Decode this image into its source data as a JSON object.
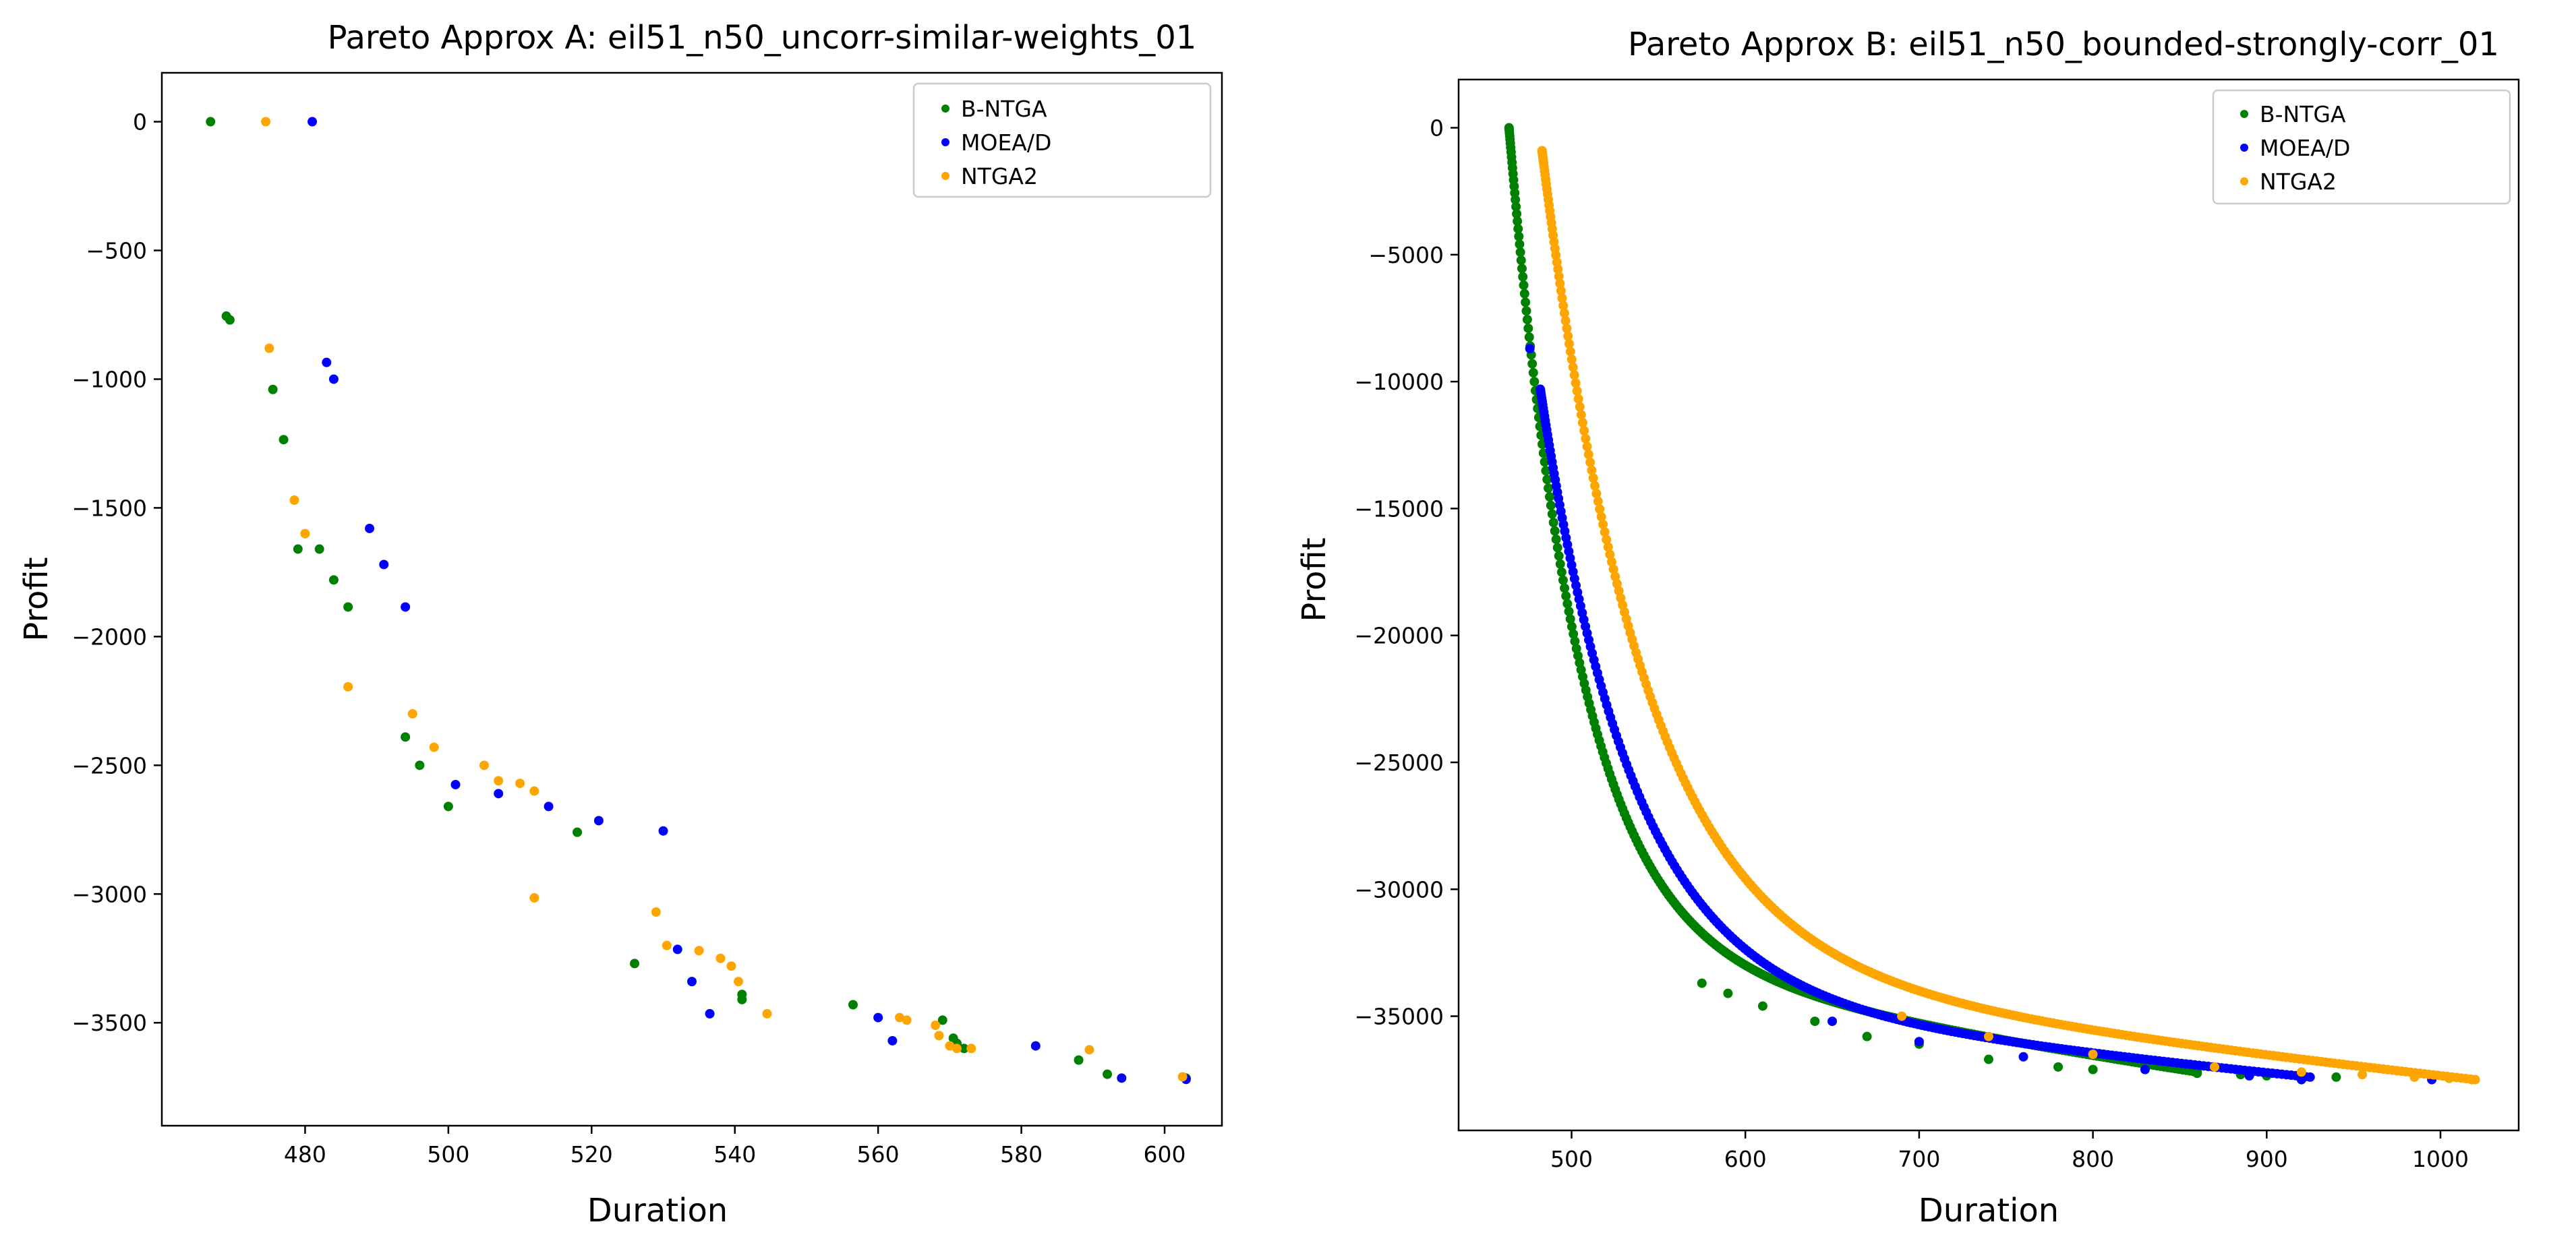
{
  "chart_data": [
    {
      "type": "scatter",
      "title": "Pareto Approx A: eil51_n50_uncorr-similar-weights_01",
      "xlabel": "Duration",
      "ylabel": "Profit",
      "xlim": [
        460,
        608
      ],
      "ylim": [
        -3900,
        190
      ],
      "xticks": [
        480,
        500,
        520,
        540,
        560,
        580,
        600
      ],
      "yticks": [
        0,
        -500,
        -1000,
        -1500,
        -2000,
        -2500,
        -3000,
        -3500
      ],
      "xtick_labels": [
        "480",
        "500",
        "520",
        "540",
        "560",
        "580",
        "600"
      ],
      "ytick_labels": [
        "0",
        "−500",
        "−1000",
        "−1500",
        "−2000",
        "−2500",
        "−3000",
        "−3500"
      ],
      "legend": [
        "B-NTGA",
        "MOEA/D",
        "NTGA2"
      ],
      "legend_position": "upper right",
      "series": [
        {
          "name": "B-NTGA",
          "color": "#008000",
          "points": [
            [
              466.8,
              0
            ],
            [
              469,
              -755
            ],
            [
              469.5,
              -770
            ],
            [
              475.5,
              -1040
            ],
            [
              477,
              -1235
            ],
            [
              479,
              -1660
            ],
            [
              482,
              -1660
            ],
            [
              484,
              -1780
            ],
            [
              486,
              -1885
            ],
            [
              494,
              -2390
            ],
            [
              496,
              -2500
            ],
            [
              500,
              -2660
            ],
            [
              518,
              -2760
            ],
            [
              526,
              -3270
            ],
            [
              541,
              -3390
            ],
            [
              541,
              -3410
            ],
            [
              556.5,
              -3430
            ],
            [
              569,
              -3490
            ],
            [
              570.5,
              -3560
            ],
            [
              571,
              -3580
            ],
            [
              572,
              -3600
            ],
            [
              588,
              -3645
            ],
            [
              592,
              -3700
            ],
            [
              603,
              -3715
            ]
          ]
        },
        {
          "name": "MOEA/D",
          "color": "#0000ff",
          "points": [
            [
              481,
              0
            ],
            [
              483,
              -935
            ],
            [
              484,
              -1000
            ],
            [
              489,
              -1580
            ],
            [
              491,
              -1720
            ],
            [
              494,
              -1885
            ],
            [
              501,
              -2575
            ],
            [
              507,
              -2610
            ],
            [
              514,
              -2660
            ],
            [
              521,
              -2715
            ],
            [
              530,
              -2755
            ],
            [
              532,
              -3215
            ],
            [
              534,
              -3340
            ],
            [
              536.5,
              -3465
            ],
            [
              560,
              -3480
            ],
            [
              562,
              -3570
            ],
            [
              582,
              -3590
            ],
            [
              594,
              -3715
            ],
            [
              603,
              -3720
            ]
          ]
        },
        {
          "name": "NTGA2",
          "color": "#ffa500",
          "points": [
            [
              474.5,
              0
            ],
            [
              475,
              -880
            ],
            [
              478.5,
              -1470
            ],
            [
              480,
              -1600
            ],
            [
              486,
              -2195
            ],
            [
              495,
              -2300
            ],
            [
              498,
              -2430
            ],
            [
              505,
              -2500
            ],
            [
              507,
              -2560
            ],
            [
              510,
              -2570
            ],
            [
              512,
              -2600
            ],
            [
              512,
              -3015
            ],
            [
              529,
              -3070
            ],
            [
              530.5,
              -3200
            ],
            [
              535,
              -3220
            ],
            [
              538,
              -3250
            ],
            [
              539.5,
              -3280
            ],
            [
              540.5,
              -3340
            ],
            [
              544.5,
              -3465
            ],
            [
              563,
              -3480
            ],
            [
              564,
              -3490
            ],
            [
              568,
              -3510
            ],
            [
              568.5,
              -3550
            ],
            [
              570,
              -3590
            ],
            [
              571,
              -3600
            ],
            [
              573,
              -3600
            ],
            [
              589.5,
              -3605
            ],
            [
              602.5,
              -3710
            ]
          ]
        }
      ]
    },
    {
      "type": "scatter",
      "title": "Pareto Approx B: eil51_n50_bounded-strongly-corr_01",
      "xlabel": "Duration",
      "ylabel": "Profit",
      "xlim": [
        435,
        1045
      ],
      "ylim": [
        -39500,
        1900
      ],
      "xticks": [
        500,
        600,
        700,
        800,
        900,
        1000
      ],
      "yticks": [
        0,
        -5000,
        -10000,
        -15000,
        -20000,
        -25000,
        -30000,
        -35000
      ],
      "xtick_labels": [
        "500",
        "600",
        "700",
        "800",
        "900",
        "1000"
      ],
      "ytick_labels": [
        "0",
        "−5000",
        "−10000",
        "−15000",
        "−20000",
        "−25000",
        "−30000",
        "−35000"
      ],
      "legend": [
        "B-NTGA",
        "MOEA/D",
        "NTGA2"
      ],
      "legend_position": "upper right",
      "series": [
        {
          "name": "B-NTGA",
          "color": "#008000",
          "curve": {
            "x0": 464,
            "x1": 860,
            "y0": 0,
            "yEnd": -37200,
            "k": 38,
            "n": 300
          },
          "points": [
            [
              575,
              -33700
            ],
            [
              590,
              -34100
            ],
            [
              610,
              -34600
            ],
            [
              640,
              -35200
            ],
            [
              670,
              -35800
            ],
            [
              700,
              -36100
            ],
            [
              740,
              -36700
            ],
            [
              780,
              -37000
            ],
            [
              800,
              -37100
            ],
            [
              860,
              -37250
            ],
            [
              885,
              -37300
            ],
            [
              900,
              -37350
            ],
            [
              940,
              -37400
            ]
          ]
        },
        {
          "name": "MOEA/D",
          "color": "#0000ff",
          "curve": {
            "x0": 482,
            "x1": 925,
            "y0": -10300,
            "yEnd": -37400,
            "k": 50,
            "n": 260
          },
          "points": [
            [
              476,
              -8700
            ],
            [
              650,
              -35200
            ],
            [
              700,
              -36000
            ],
            [
              760,
              -36600
            ],
            [
              830,
              -37100
            ],
            [
              890,
              -37350
            ],
            [
              920,
              -37500
            ],
            [
              995,
              -37500
            ]
          ]
        },
        {
          "name": "NTGA2",
          "color": "#ffa500",
          "curve": {
            "x0": 483,
            "x1": 1020,
            "y0": -900,
            "yEnd": -37500,
            "k": 55,
            "n": 320
          },
          "points": [
            [
              690,
              -35000
            ],
            [
              740,
              -35800
            ],
            [
              800,
              -36500
            ],
            [
              870,
              -37000
            ],
            [
              920,
              -37200
            ],
            [
              955,
              -37300
            ],
            [
              985,
              -37400
            ],
            [
              1005,
              -37450
            ],
            [
              1018,
              -37500
            ]
          ]
        }
      ]
    }
  ]
}
